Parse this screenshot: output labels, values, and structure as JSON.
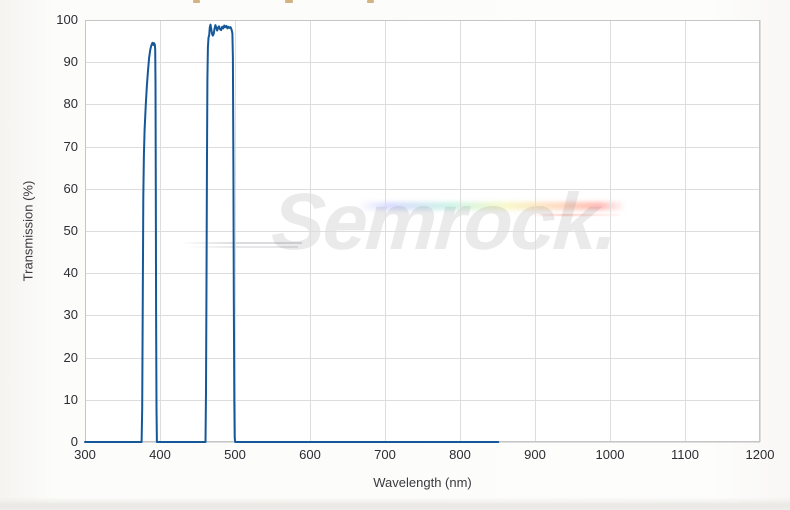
{
  "watermark": {
    "text": "Semrock."
  },
  "clipped_title": {
    "fragment_color": "rgba(205,164,109,0.85)"
  },
  "colors": {
    "curve": "#15589a",
    "gridline": "#dddddd",
    "plot_border": "#c6c6c6",
    "tick_text": "#2c2c34",
    "axis_title_text": "#3a3a40",
    "plot_background": "#ffffff",
    "page_background": "#fbfaf8"
  },
  "chart_data": {
    "type": "line",
    "title": "",
    "xlabel": "Wavelength (nm)",
    "ylabel": "Transmission (%)",
    "xlim": [
      300,
      1200
    ],
    "ylim": [
      0,
      100
    ],
    "x_ticks": [
      300,
      400,
      500,
      600,
      700,
      800,
      900,
      1000,
      1100,
      1200
    ],
    "y_ticks": [
      0,
      10,
      20,
      30,
      40,
      50,
      60,
      70,
      80,
      90,
      100
    ],
    "grid": true,
    "legend": "none",
    "bands_read_from_chart": [
      {
        "range_nm": [
          376,
          396
        ],
        "peak_transmission_pct": 94.6
      },
      {
        "range_nm": [
          461,
          500
        ],
        "peak_transmission_pct": 98.9
      }
    ],
    "trace_end_nm": 851,
    "series": [
      {
        "name": "Transmission",
        "color": "#15589a",
        "points": [
          [
            300,
            0
          ],
          [
            340,
            0
          ],
          [
            375.5,
            0
          ],
          [
            376.3,
            8
          ],
          [
            377,
            35
          ],
          [
            377.7,
            58
          ],
          [
            378.5,
            68
          ],
          [
            379.5,
            74
          ],
          [
            381,
            80
          ],
          [
            382.5,
            84.5
          ],
          [
            384,
            88
          ],
          [
            385.5,
            91
          ],
          [
            387,
            93
          ],
          [
            388.5,
            94
          ],
          [
            390,
            94.6
          ],
          [
            391,
            94.1
          ],
          [
            392,
            94.5
          ],
          [
            393,
            94.2
          ],
          [
            393.6,
            93
          ],
          [
            394,
            85
          ],
          [
            394.4,
            60
          ],
          [
            394.8,
            30
          ],
          [
            395.3,
            8
          ],
          [
            395.8,
            0
          ],
          [
            420,
            0
          ],
          [
            460.7,
            0
          ],
          [
            461.4,
            12
          ],
          [
            462,
            38
          ],
          [
            462.6,
            68
          ],
          [
            463.2,
            86
          ],
          [
            463.9,
            93.5
          ],
          [
            464.7,
            95.8
          ],
          [
            465.6,
            96.4
          ],
          [
            466.4,
            98.3
          ],
          [
            467.3,
            98.9
          ],
          [
            468.3,
            97.9
          ],
          [
            469.3,
            96.8
          ],
          [
            470.4,
            96.3
          ],
          [
            471.6,
            96.7
          ],
          [
            472.7,
            97.9
          ],
          [
            473.9,
            98.8
          ],
          [
            475.1,
            98.2
          ],
          [
            476.3,
            97.5
          ],
          [
            477.5,
            98.2
          ],
          [
            478.7,
            98.5
          ],
          [
            480.1,
            97.8
          ],
          [
            481.5,
            97.6
          ],
          [
            482.9,
            98.4
          ],
          [
            484.3,
            98.0
          ],
          [
            485.7,
            98.7
          ],
          [
            487.1,
            98.3
          ],
          [
            488.5,
            98.6
          ],
          [
            489.9,
            98.0
          ],
          [
            491.3,
            98.4
          ],
          [
            492.7,
            98.1
          ],
          [
            494.1,
            98.3
          ],
          [
            495.5,
            97.7
          ],
          [
            496.5,
            96.8
          ],
          [
            497.2,
            91
          ],
          [
            497.8,
            65
          ],
          [
            498.4,
            35
          ],
          [
            499,
            10
          ],
          [
            499.6,
            1
          ],
          [
            500.2,
            0
          ],
          [
            600,
            0
          ],
          [
            700,
            0
          ],
          [
            800,
            0
          ],
          [
            851,
            0
          ]
        ]
      }
    ]
  }
}
